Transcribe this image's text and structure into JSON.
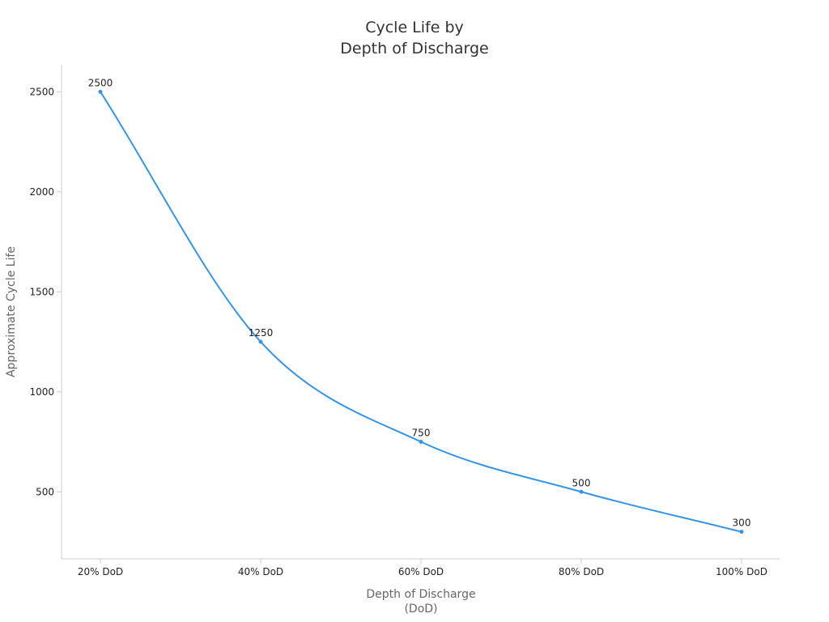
{
  "colors": {
    "series": "#3794e3",
    "axis": "#cccccc",
    "text": "#222222",
    "axis_title": "#666666",
    "title": "#333333"
  },
  "chart_data": {
    "type": "line",
    "title_lines": [
      "Cycle Life by",
      "Depth of Discharge"
    ],
    "xlabel_lines": [
      "Depth of Discharge",
      "(DoD)"
    ],
    "ylabel": "Approximate Cycle Life",
    "categories": [
      "20% DoD",
      "40% DoD",
      "60% DoD",
      "80% DoD",
      "100% DoD"
    ],
    "series": [
      {
        "values": [
          2500,
          1250,
          750,
          500,
          300
        ]
      }
    ],
    "data_labels": [
      "2500",
      "1250",
      "750",
      "500",
      "300"
    ],
    "y_ticks": [
      500,
      1000,
      1500,
      2000,
      2500
    ],
    "y_tick_labels": [
      "500",
      "1000",
      "1500",
      "2000",
      "2500"
    ],
    "ylim": [
      165,
      2635
    ],
    "smooth": true,
    "grid": false,
    "legend": "none"
  }
}
